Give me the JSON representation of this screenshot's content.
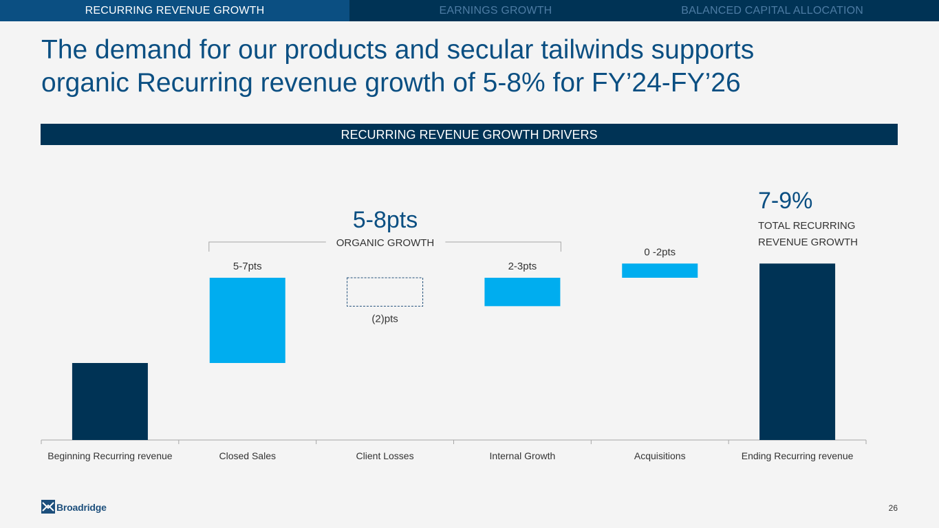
{
  "nav": {
    "tabs": [
      {
        "label": "RECURRING REVENUE GROWTH",
        "active": true
      },
      {
        "label": "EARNINGS GROWTH",
        "active": false
      },
      {
        "label": "BALANCED CAPITAL ALLOCATION",
        "active": false
      }
    ]
  },
  "title": {
    "line1": "The demand for our products and secular tailwinds supports",
    "line2": "organic Recurring revenue growth of 5-8% for FY’24-FY’26"
  },
  "banner": "RECURRING REVENUE GROWTH DRIVERS",
  "chart_data": {
    "type": "bar",
    "subtype": "waterfall",
    "categories": [
      "Beginning Recurring revenue",
      "Closed Sales",
      "Client Losses",
      "Internal Growth",
      "Acquisitions",
      "Ending Recurring revenue"
    ],
    "value_labels": [
      "",
      "5-7pts",
      "(2)pts",
      "2-3pts",
      "0 -2pts",
      ""
    ],
    "bars": [
      {
        "kind": "total",
        "start": 0,
        "end": 100
      },
      {
        "kind": "increase",
        "start": 100,
        "end": 106
      },
      {
        "kind": "decrease",
        "start": 106,
        "end": 104
      },
      {
        "kind": "increase",
        "start": 104,
        "end": 106
      },
      {
        "kind": "increase",
        "start": 106,
        "end": 107
      },
      {
        "kind": "total",
        "start": 0,
        "end": 107
      }
    ],
    "baseline": 0,
    "ylim": [
      0,
      109
    ],
    "annotations": {
      "organic_value": "5-8pts",
      "organic_label": "ORGANIC GROWTH",
      "total_value": "7-9%",
      "total_label_line1": "TOTAL RECURRING",
      "total_label_line2": "REVENUE GROWTH"
    },
    "colors": {
      "total": "#003355",
      "increase": "#00adef",
      "decrease_outline": "#1f4e79",
      "accent_text": "#0b4f82",
      "axis": "#a6a6a6"
    },
    "grid": false,
    "legend": "none"
  },
  "footer": {
    "logo_text": "Broadridge",
    "logo_icon": "broadridge-logo-icon",
    "page_number": "26"
  }
}
